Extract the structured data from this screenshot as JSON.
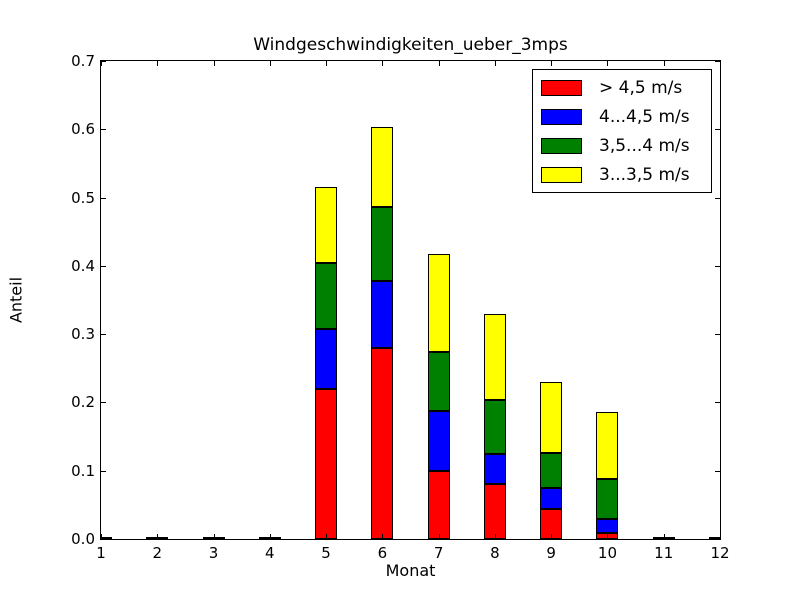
{
  "chart_data": {
    "type": "bar",
    "stacked": true,
    "title": "Windgeschwindigkeiten_ueber_3mps",
    "xlabel": "Monat",
    "ylabel": "Anteil",
    "xlim": [
      1,
      12
    ],
    "ylim": [
      0,
      0.7
    ],
    "xticks": [
      "1",
      "2",
      "3",
      "4",
      "5",
      "6",
      "7",
      "8",
      "9",
      "10",
      "11",
      "12"
    ],
    "yticks": [
      "0.0",
      "0.1",
      "0.2",
      "0.3",
      "0.4",
      "0.5",
      "0.6",
      "0.7"
    ],
    "categories": [
      1,
      2,
      3,
      4,
      5,
      6,
      7,
      8,
      9,
      10,
      11,
      12
    ],
    "bar_width": 0.39,
    "grid": false,
    "legend_position": "upper right",
    "series": [
      {
        "name": "> 4,5 m/s",
        "color": "#ff0000",
        "values": [
          0,
          0,
          0,
          0,
          0.22,
          0.28,
          0.1,
          0.081,
          0.044,
          0.009,
          0,
          0
        ]
      },
      {
        "name": "4...4,5 m/s",
        "color": "#0000ff",
        "values": [
          0,
          0,
          0,
          0,
          0.088,
          0.098,
          0.087,
          0.044,
          0.031,
          0.021,
          0,
          0
        ]
      },
      {
        "name": "3,5...4 m/s",
        "color": "#008000",
        "values": [
          0,
          0,
          0,
          0,
          0.096,
          0.108,
          0.087,
          0.078,
          0.051,
          0.058,
          0,
          0
        ]
      },
      {
        "name": "3...3,5 m/s",
        "color": "#ffff00",
        "values": [
          0,
          0,
          0,
          0,
          0.112,
          0.117,
          0.143,
          0.126,
          0.104,
          0.098,
          0,
          0
        ]
      }
    ],
    "stacked_totals": [
      0,
      0,
      0,
      0,
      0.516,
      0.603,
      0.417,
      0.329,
      0.23,
      0.186,
      0,
      0
    ],
    "frame_color": "#000000",
    "background_color": "#ffffff"
  }
}
